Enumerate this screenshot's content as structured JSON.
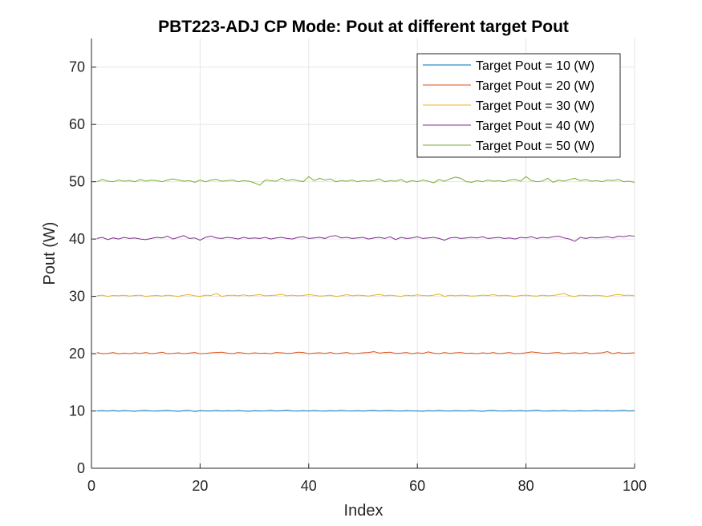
{
  "chart_data": {
    "type": "line",
    "title": "PBT223-ADJ CP Mode: Pout at different target Pout",
    "xlabel": "Index",
    "ylabel": "Pout (W)",
    "xlim": [
      0,
      100
    ],
    "ylim": [
      0,
      75
    ],
    "xticks": [
      0,
      20,
      40,
      60,
      80,
      100
    ],
    "yticks": [
      0,
      10,
      20,
      30,
      40,
      50,
      60,
      70
    ],
    "grid": true,
    "legend_position": "top-right",
    "series": [
      {
        "name": "Target Pout = 10 (W)",
        "color": "#0072BD",
        "x_start": 1,
        "x_end": 100,
        "values": [
          10.0,
          10.05,
          9.98,
          10.1,
          9.97,
          10.08,
          10.0,
          9.95,
          10.05,
          10.1,
          10.0,
          9.98,
          10.05,
          10.1,
          10.0,
          9.95,
          10.05,
          10.1,
          9.92,
          10.05,
          10.02,
          10.0,
          10.1,
          9.98,
          10.05,
          10.0,
          10.08,
          10.0,
          9.95,
          10.05,
          10.0,
          10.02,
          10.1,
          10.0,
          10.05,
          10.12,
          10.0,
          9.98,
          10.05,
          10.0,
          10.08,
          10.0,
          9.98,
          10.05,
          10.0,
          10.1,
          10.02,
          10.0,
          10.05,
          9.98,
          10.05,
          10.1,
          10.0,
          10.05,
          10.08,
          10.0,
          9.98,
          10.05,
          10.02,
          10.0,
          9.95,
          10.05,
          10.0,
          10.1,
          10.0,
          9.98,
          10.05,
          10.02,
          10.0,
          10.1,
          10.0,
          9.95,
          10.05,
          10.1,
          10.0,
          9.98,
          10.05,
          10.0,
          10.08,
          9.98,
          10.05,
          10.12,
          10.0,
          9.98,
          10.05,
          10.0,
          10.1,
          10.0,
          9.98,
          10.05,
          10.0,
          10.02,
          10.1,
          10.0,
          10.05,
          9.98,
          10.05,
          10.1,
          10.0,
          10.05
        ]
      },
      {
        "name": "Target Pout = 20 (W)",
        "color": "#D95319",
        "x_start": 1,
        "x_end": 100,
        "values": [
          20.2,
          20.0,
          20.05,
          20.2,
          19.95,
          20.1,
          20.0,
          20.15,
          20.05,
          20.2,
          20.0,
          20.1,
          20.25,
          20.0,
          20.05,
          20.15,
          20.0,
          20.1,
          20.2,
          20.0,
          20.05,
          20.15,
          20.2,
          20.25,
          20.1,
          20.0,
          20.2,
          20.1,
          20.0,
          20.15,
          20.05,
          20.1,
          20.0,
          20.2,
          20.15,
          20.05,
          20.1,
          20.25,
          20.2,
          20.0,
          20.1,
          20.15,
          20.05,
          20.2,
          20.0,
          20.1,
          20.2,
          20.0,
          20.05,
          20.15,
          20.2,
          20.35,
          20.1,
          20.2,
          20.25,
          20.05,
          20.1,
          20.2,
          20.0,
          20.15,
          20.05,
          20.3,
          20.1,
          20.0,
          20.2,
          20.05,
          20.15,
          20.2,
          20.05,
          20.1,
          20.0,
          20.15,
          20.05,
          20.2,
          20.0,
          20.1,
          20.2,
          20.0,
          20.05,
          20.15,
          20.3,
          20.2,
          20.1,
          20.05,
          20.15,
          20.2,
          20.0,
          20.1,
          20.15,
          20.05,
          20.2,
          20.0,
          20.1,
          20.15,
          20.35,
          20.0,
          20.2,
          20.05,
          20.1,
          20.15
        ]
      },
      {
        "name": "Target Pout = 30 (W)",
        "color": "#EDB120",
        "x_start": 1,
        "x_end": 100,
        "values": [
          30.1,
          30.2,
          30.0,
          30.15,
          30.1,
          30.2,
          30.05,
          30.15,
          30.2,
          30.0,
          30.1,
          30.15,
          30.05,
          30.2,
          30.1,
          30.0,
          30.2,
          30.3,
          30.1,
          30.0,
          30.2,
          30.15,
          30.5,
          30.0,
          30.15,
          30.2,
          30.1,
          30.25,
          30.1,
          30.2,
          30.3,
          30.1,
          30.15,
          30.2,
          30.35,
          30.1,
          30.2,
          30.1,
          30.15,
          30.3,
          30.2,
          30.05,
          30.1,
          30.2,
          30.0,
          30.1,
          30.3,
          30.1,
          30.2,
          30.15,
          30.05,
          30.2,
          30.35,
          30.1,
          30.2,
          30.1,
          30.0,
          30.2,
          30.1,
          30.25,
          30.15,
          30.1,
          30.2,
          30.4,
          30.0,
          30.2,
          30.1,
          30.2,
          30.15,
          30.05,
          30.1,
          30.2,
          30.15,
          30.3,
          30.1,
          30.2,
          30.1,
          30.0,
          30.15,
          30.2,
          30.1,
          30.05,
          30.2,
          30.1,
          30.15,
          30.3,
          30.5,
          30.1,
          30.0,
          30.2,
          30.15,
          30.1,
          30.2,
          30.1,
          30.0,
          30.2,
          30.35,
          30.15,
          30.2,
          30.1
        ]
      },
      {
        "name": "Target Pout = 40 (W)",
        "color": "#7E2F8E",
        "x_start": 1,
        "x_end": 100,
        "values": [
          40.1,
          40.3,
          39.9,
          40.2,
          40.0,
          40.3,
          40.1,
          40.2,
          40.0,
          39.9,
          40.1,
          40.3,
          40.2,
          40.5,
          40.0,
          40.3,
          40.6,
          40.1,
          40.2,
          39.8,
          40.3,
          40.5,
          40.2,
          40.1,
          40.3,
          40.2,
          40.0,
          40.3,
          40.1,
          40.2,
          40.1,
          40.3,
          40.0,
          40.2,
          40.3,
          40.1,
          40.0,
          40.3,
          40.4,
          40.1,
          40.2,
          40.3,
          40.1,
          40.5,
          40.6,
          40.2,
          40.3,
          40.1,
          40.2,
          40.3,
          40.0,
          40.2,
          40.3,
          40.1,
          40.4,
          39.9,
          40.3,
          40.1,
          40.2,
          40.4,
          40.1,
          40.2,
          40.3,
          40.1,
          39.8,
          40.2,
          40.3,
          40.1,
          40.2,
          40.3,
          40.2,
          40.4,
          40.1,
          40.2,
          40.3,
          40.1,
          40.2,
          40.0,
          40.3,
          40.2,
          40.4,
          40.1,
          40.3,
          40.2,
          40.4,
          40.5,
          40.2,
          40.0,
          39.6,
          40.3,
          40.1,
          40.3,
          40.2,
          40.3,
          40.4,
          40.2,
          40.5,
          40.4,
          40.6,
          40.5
        ]
      },
      {
        "name": "Target Pout = 50 (W)",
        "color": "#77AC30",
        "x_start": 1,
        "x_end": 100,
        "values": [
          50.0,
          50.4,
          50.1,
          50.0,
          50.3,
          50.1,
          50.2,
          50.0,
          50.4,
          50.1,
          50.3,
          50.2,
          50.0,
          50.3,
          50.5,
          50.3,
          50.1,
          50.2,
          49.9,
          50.3,
          50.0,
          50.3,
          50.4,
          50.1,
          50.2,
          50.3,
          50.0,
          50.2,
          50.1,
          49.8,
          49.4,
          50.3,
          50.2,
          50.1,
          50.6,
          50.2,
          50.4,
          50.2,
          50.0,
          50.9,
          50.2,
          50.6,
          50.3,
          50.5,
          50.0,
          50.2,
          50.1,
          50.3,
          50.0,
          50.2,
          50.1,
          50.2,
          50.5,
          50.0,
          50.2,
          50.1,
          50.4,
          49.9,
          50.2,
          50.0,
          50.3,
          50.1,
          49.8,
          50.4,
          50.1,
          50.5,
          50.8,
          50.6,
          50.0,
          49.9,
          50.2,
          50.0,
          50.3,
          50.1,
          50.2,
          50.0,
          50.3,
          50.4,
          50.1,
          50.9,
          50.2,
          50.0,
          50.1,
          50.6,
          49.9,
          50.3,
          50.1,
          50.4,
          50.6,
          50.2,
          50.4,
          50.1,
          50.2,
          50.0,
          50.3,
          50.2,
          50.4,
          50.0,
          50.1,
          49.9
        ]
      }
    ]
  }
}
